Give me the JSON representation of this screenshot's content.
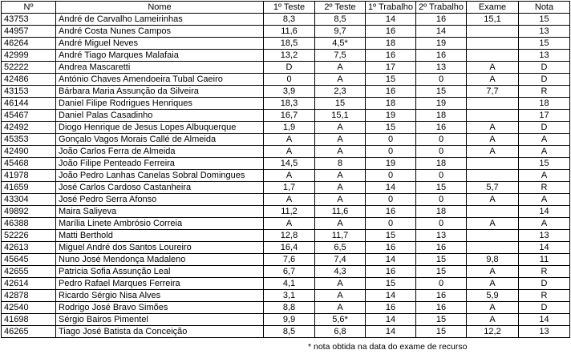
{
  "headers": [
    "Nº",
    "Nome",
    "1º Teste",
    "2º Teste",
    "1º Trabalho",
    "2º Trabalho",
    "Exame",
    "Nota"
  ],
  "rows": [
    [
      "43753",
      "André de Carvalho Lameirinhas",
      "8,3",
      "8,5",
      "14",
      "16",
      "15,1",
      "15"
    ],
    [
      "44957",
      "André Costa Nunes Campos",
      "11,6",
      "9,7",
      "16",
      "14",
      "",
      "13"
    ],
    [
      "46264",
      "André Miguel Neves",
      "18,5",
      "4,5*",
      "18",
      "19",
      "",
      "15"
    ],
    [
      "42999",
      "André Tiago Marques Malafaia",
      "13,2",
      "7,5",
      "16",
      "16",
      "",
      "13"
    ],
    [
      "52222",
      "Andrea Mascaretti",
      "D",
      "A",
      "17",
      "13",
      "A",
      "D"
    ],
    [
      "42486",
      "António Chaves Amendoeira Tubal Caeiro",
      "0",
      "A",
      "15",
      "0",
      "A",
      "D"
    ],
    [
      "43153",
      "Bárbara Maria Assunção da Silveira",
      "3,9",
      "2,3",
      "16",
      "15",
      "7,7",
      "R"
    ],
    [
      "46144",
      "Daniel Filipe Rodrigues Henriques",
      "18,3",
      "15",
      "18",
      "19",
      "",
      "18"
    ],
    [
      "45467",
      "Daniel Palas Casadinho",
      "16,7",
      "15,1",
      "19",
      "18",
      "",
      "17"
    ],
    [
      "42492",
      "Diogo Henrique de Jesus Lopes Albuquerque",
      "1,9",
      "A",
      "15",
      "16",
      "A",
      "D"
    ],
    [
      "45353",
      "Gonçalo Vagos Morais Callé de Almeida",
      "A",
      "A",
      "0",
      "0",
      "A",
      "A"
    ],
    [
      "42490",
      "João Carlos Ferra de Almeida",
      "A",
      "A",
      "0",
      "0",
      "A",
      "A"
    ],
    [
      "45468",
      "João Filipe Penteado Ferreira",
      "14,5",
      "8",
      "19",
      "18",
      "",
      "15"
    ],
    [
      "41978",
      "João Pedro Lanhas Canelas Sobral Domingues",
      "A",
      "A",
      "0",
      "0",
      "",
      "A"
    ],
    [
      "41659",
      "José Carlos Cardoso Castanheira",
      "1,7",
      "A",
      "14",
      "15",
      "5,7",
      "R"
    ],
    [
      "43304",
      "José Pedro Serra Afonso",
      "A",
      "A",
      "0",
      "0",
      "A",
      "A"
    ],
    [
      "49892",
      "Maira Saliyeva",
      "11,2",
      "11,6",
      "16",
      "18",
      "",
      "14"
    ],
    [
      "46388",
      "Marília Linete Ambrósio Correia",
      "A",
      "A",
      "0",
      "0",
      "A",
      "A"
    ],
    [
      "52226",
      "Matti Berthold",
      "12,8",
      "11,7",
      "15",
      "13",
      "",
      "13"
    ],
    [
      "42613",
      "Miguel André dos Santos Loureiro",
      "16,4",
      "6,5",
      "16",
      "16",
      "",
      "14"
    ],
    [
      "45645",
      "Nuno José Mendonça Madaleno",
      "7,6",
      "7,4",
      "14",
      "15",
      "9,8",
      "11"
    ],
    [
      "42655",
      "Patricia Sofia Assunção Leal",
      "6,7",
      "4,3",
      "16",
      "15",
      "A",
      "R"
    ],
    [
      "42614",
      "Pedro Rafael Marques Ferreira",
      "4,1",
      "A",
      "15",
      "0",
      "A",
      "D"
    ],
    [
      "42878",
      "Ricardo Sérgio Nisa Alves",
      "3,1",
      "A",
      "14",
      "16",
      "5,9",
      "R"
    ],
    [
      "42540",
      "Rodrigo José Bravo Simões",
      "8,8",
      "A",
      "16",
      "16",
      "A",
      "D"
    ],
    [
      "41698",
      "Sérgio Bairos Pimentel",
      "9,9",
      "5,6*",
      "14",
      "15",
      "A",
      "14"
    ],
    [
      "46265",
      "Tiago José Batista da Conceição",
      "8,5",
      "6,8",
      "14",
      "15",
      "12,2",
      "13"
    ]
  ],
  "footnote": "* nota obtida na data do exame de recurso"
}
